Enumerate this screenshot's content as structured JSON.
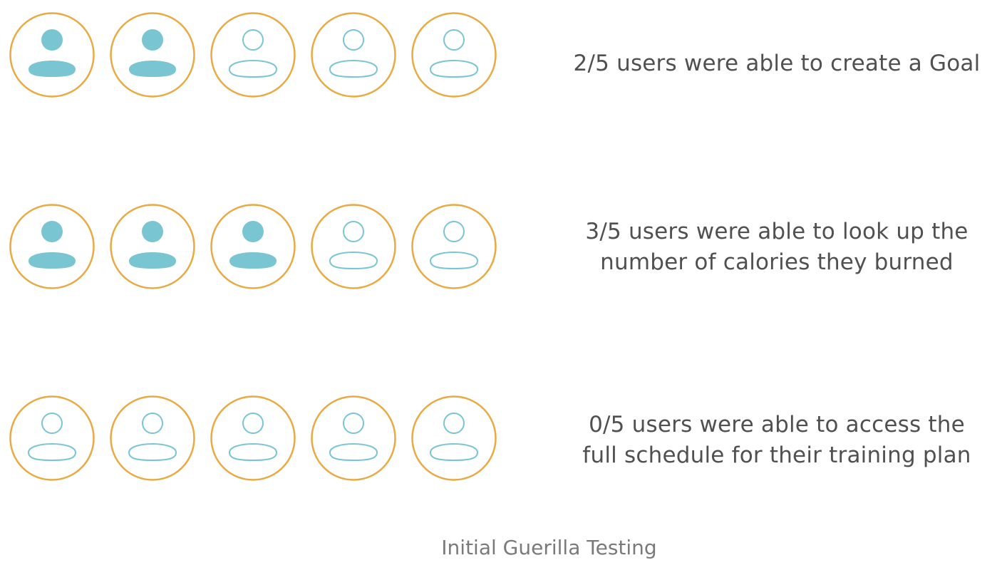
{
  "colors": {
    "ring": "#e9aa44",
    "user_icon": "#7ac5d2",
    "caption_text": "#505050",
    "footer_text": "#7a7a7a"
  },
  "icon_name": "user-icon",
  "rows": [
    {
      "success_count": 2,
      "total": 5,
      "caption_lines": [
        "2/5 users were able to create a Goal"
      ]
    },
    {
      "success_count": 3,
      "total": 5,
      "caption_lines": [
        "3/5 users were able to look up the",
        "number of calories they burned"
      ]
    },
    {
      "success_count": 0,
      "total": 5,
      "caption_lines": [
        "0/5 users were able to access the",
        "full schedule for their training plan"
      ]
    }
  ],
  "footer": {
    "title": "Initial Guerilla Testing"
  }
}
